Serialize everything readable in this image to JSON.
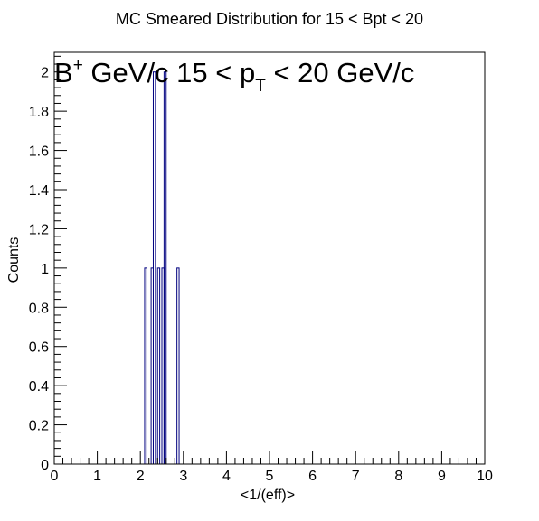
{
  "chart_data": {
    "type": "histogram",
    "title": "MC Smeared Distribution for 15 < Bpt < 20",
    "xlabel": "<1/(eff)>",
    "ylabel": "Counts",
    "xlim": [
      0,
      10
    ],
    "ylim": [
      0,
      2.1
    ],
    "x_ticks": [
      "0",
      "1",
      "2",
      "3",
      "4",
      "5",
      "6",
      "7",
      "8",
      "9",
      "10"
    ],
    "y_ticks": [
      "0",
      "0.2",
      "0.4",
      "0.6",
      "0.8",
      "1",
      "1.2",
      "1.4",
      "1.6",
      "1.8",
      "2"
    ],
    "bin_width": 0.05,
    "bins": [
      {
        "x": 2.1,
        "count": 1
      },
      {
        "x": 2.25,
        "count": 1
      },
      {
        "x": 2.3,
        "count": 2
      },
      {
        "x": 2.4,
        "count": 1
      },
      {
        "x": 2.5,
        "count": 1
      },
      {
        "x": 2.55,
        "count": 2
      },
      {
        "x": 2.85,
        "count": 1
      }
    ],
    "annotation": {
      "base": "B",
      "sup": "+",
      "mid": " GeV/c 15 < p",
      "sub": "T",
      "tail": " < 20 GeV/c"
    },
    "line_color": "#00007f"
  }
}
